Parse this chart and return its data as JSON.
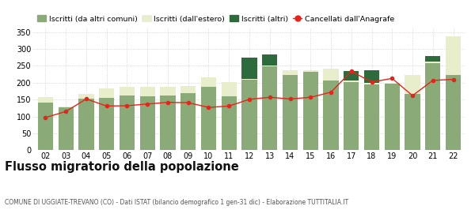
{
  "years": [
    "02",
    "03",
    "04",
    "05",
    "06",
    "07",
    "08",
    "09",
    "10",
    "11",
    "12",
    "13",
    "14",
    "15",
    "16",
    "17",
    "18",
    "19",
    "20",
    "21",
    "22"
  ],
  "iscritti_comuni": [
    142,
    127,
    152,
    155,
    163,
    160,
    162,
    170,
    188,
    160,
    208,
    248,
    223,
    233,
    207,
    202,
    196,
    198,
    167,
    257,
    222
  ],
  "iscritti_estero": [
    16,
    3,
    16,
    28,
    25,
    27,
    25,
    20,
    28,
    42,
    4,
    3,
    15,
    5,
    35,
    4,
    4,
    2,
    55,
    5,
    115
  ],
  "iscritti_altri": [
    0,
    0,
    0,
    0,
    0,
    0,
    0,
    0,
    0,
    0,
    63,
    33,
    0,
    0,
    0,
    28,
    38,
    0,
    0,
    18,
    0
  ],
  "cancellati": [
    97,
    115,
    152,
    131,
    132,
    137,
    142,
    141,
    127,
    131,
    151,
    157,
    152,
    157,
    172,
    234,
    202,
    213,
    162,
    207,
    210
  ],
  "color_comuni": "#8aab78",
  "color_estero": "#e8eecc",
  "color_altri": "#2d6b3c",
  "color_cancellati": "#e8231a",
  "legend_labels": [
    "Iscritti (da altri comuni)",
    "Iscritti (dall'estero)",
    "Iscritti (altri)",
    "Cancellati dall'Anagrafe"
  ],
  "title": "Flusso migratorio della popolazione",
  "subtitle": "COMUNE DI UGGIATE-TREVANO (CO) - Dati ISTAT (bilancio demografico 1 gen-31 dic) - Elaborazione TUTTITALIA.IT",
  "ylim": [
    0,
    360
  ],
  "yticks": [
    0,
    50,
    100,
    150,
    200,
    250,
    300,
    350
  ],
  "grid_color": "#cccccc",
  "background_color": "#ffffff"
}
